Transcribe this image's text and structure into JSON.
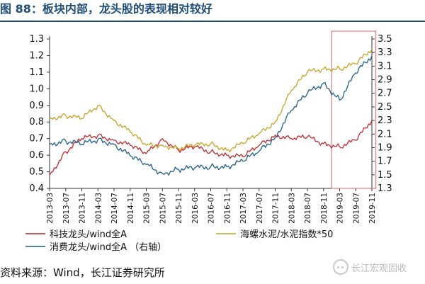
{
  "header": {
    "title": "图 88：板块内部，龙头股的表现相对较好"
  },
  "source_note": "资料来源：Wind，长江证券研究所",
  "watermark": {
    "text": "长江宏观固收",
    "icon": "wechat-icon"
  },
  "chart_data": {
    "type": "line",
    "title": "",
    "x_dates": [
      "2013-03",
      "2013-07",
      "2013-11",
      "2014-03",
      "2014-07",
      "2014-11",
      "2015-03",
      "2015-07",
      "2015-11",
      "2016-03",
      "2016-07",
      "2016-11",
      "2017-03",
      "2017-07",
      "2017-11",
      "2018-03",
      "2018-07",
      "2018-11",
      "2019-03",
      "2019-07",
      "2019-11"
    ],
    "x_tick_labels": [
      "2013-03",
      "2013-07",
      "2013-11",
      "2014-03",
      "2014-07",
      "2014-11",
      "2015-03",
      "2015-07",
      "2015-11",
      "2016-03",
      "2016-07",
      "2016-11",
      "2017-03",
      "2017-07",
      "2017-11",
      "2018-03",
      "2018-07",
      "2018-11",
      "2019-03",
      "2019-07",
      "2019-11"
    ],
    "y_left": {
      "min": 0.4,
      "max": 1.3,
      "ticks": [
        "0.4",
        "0.5",
        "0.6",
        "0.7",
        "0.8",
        "0.9",
        "1.0",
        "1.1",
        "1.2",
        "1.3"
      ]
    },
    "y_right": {
      "min": 1.3,
      "max": 3.5,
      "ticks": [
        "1.3",
        "1.5",
        "1.7",
        "1.9",
        "2.1",
        "2.3",
        "2.5",
        "2.7",
        "2.9",
        "3.1",
        "3.3",
        "3.5"
      ]
    },
    "highlight_range": {
      "from": "2019-01",
      "to": "2019-12",
      "color": "#e06060"
    },
    "grid": false,
    "legend_position": "bottom",
    "series": [
      {
        "name": "科技龙头/wind全A",
        "axis": "left",
        "color": "#c0282d",
        "values": [
          0.48,
          0.62,
          0.7,
          0.72,
          0.69,
          0.66,
          0.61,
          0.7,
          0.63,
          0.65,
          0.62,
          0.6,
          0.59,
          0.66,
          0.72,
          0.7,
          0.71,
          0.67,
          0.65,
          0.69,
          0.81
        ]
      },
      {
        "name": "海螺水泥/水泥指数*50",
        "axis": "left",
        "color": "#c9a227",
        "values": [
          0.82,
          0.84,
          0.82,
          0.9,
          0.81,
          0.74,
          0.66,
          0.66,
          0.64,
          0.66,
          0.67,
          0.63,
          0.67,
          0.73,
          0.8,
          0.99,
          1.1,
          1.12,
          1.12,
          1.15,
          1.24
        ]
      },
      {
        "name": "消费龙头/wind全A",
        "name_suffix": "（右轴）",
        "axis": "right",
        "color": "#1f5f8b",
        "values": [
          1.95,
          2.0,
          1.95,
          2.02,
          1.95,
          1.78,
          1.65,
          1.52,
          1.58,
          1.6,
          1.62,
          1.62,
          1.7,
          1.85,
          2.05,
          2.45,
          2.7,
          2.85,
          2.6,
          3.0,
          3.25
        ]
      }
    ]
  }
}
